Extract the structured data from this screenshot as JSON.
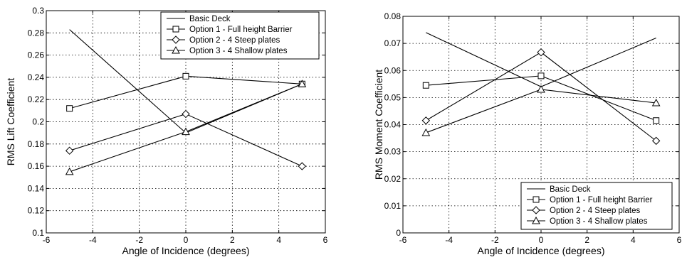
{
  "chart_data": [
    {
      "type": "line",
      "title": "",
      "xlabel": "Angle of Incidence (degrees)",
      "ylabel": "RMS Lift Coefficient",
      "xlim": [
        -6,
        6
      ],
      "ylim": [
        0.1,
        0.3
      ],
      "xticks": [
        "-6",
        "-4",
        "-2",
        "0",
        "2",
        "4",
        "6"
      ],
      "yticks": [
        "0.1",
        "0.12",
        "0.14",
        "0.16",
        "0.18",
        "0.2",
        "0.22",
        "0.24",
        "0.26",
        "0.28",
        "0.3"
      ],
      "grid": true,
      "legend_position": "top-right",
      "x": [
        -5,
        0,
        5
      ],
      "series": [
        {
          "name": "Basic Deck",
          "marker": "none",
          "values": [
            0.283,
            0.19,
            0.234
          ]
        },
        {
          "name": "Option 1 - Full height Barrier",
          "marker": "square",
          "values": [
            0.212,
            0.241,
            0.234
          ]
        },
        {
          "name": "Option 2 - 4 Steep plates",
          "marker": "diamond",
          "values": [
            0.174,
            0.207,
            0.16
          ]
        },
        {
          "name": "Option 3 - 4 Shallow plates",
          "marker": "triangle",
          "values": [
            0.155,
            0.191,
            0.234
          ]
        }
      ]
    },
    {
      "type": "line",
      "title": "",
      "xlabel": "Angle of Incidence (degrees)",
      "ylabel": "RMS Moment Coefficient",
      "xlim": [
        -6,
        6
      ],
      "ylim": [
        0,
        0.08
      ],
      "xticks": [
        "-6",
        "-4",
        "-2",
        "0",
        "2",
        "4",
        "6"
      ],
      "yticks": [
        "0",
        "0.01",
        "0.02",
        "0.03",
        "0.04",
        "0.05",
        "0.06",
        "0.07",
        "0.08"
      ],
      "grid": true,
      "legend_position": "bottom-right",
      "x": [
        -5,
        0,
        5
      ],
      "series": [
        {
          "name": "Basic Deck",
          "marker": "none",
          "values": [
            0.074,
            0.054,
            0.072
          ]
        },
        {
          "name": "Option 1 - Full height Barrier",
          "marker": "square",
          "values": [
            0.0545,
            0.058,
            0.0415
          ]
        },
        {
          "name": "Option 2 - 4 Steep plates",
          "marker": "diamond",
          "values": [
            0.0415,
            0.0667,
            0.034
          ]
        },
        {
          "name": "Option 3 - 4 Shallow plates",
          "marker": "triangle",
          "values": [
            0.037,
            0.053,
            0.048
          ]
        }
      ]
    }
  ]
}
